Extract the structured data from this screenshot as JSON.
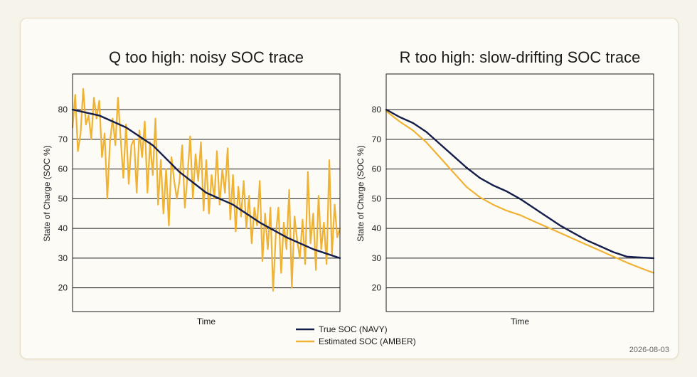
{
  "date": "2026-08-03",
  "colors": {
    "true": "#141e4a",
    "estimated": "#f0b233",
    "grid": "#1b1b1b"
  },
  "legend": [
    {
      "label": "True SOC (NAVY)",
      "color": "#141e4a"
    },
    {
      "label": "Estimated SOC (AMBER)",
      "color": "#f0b233"
    }
  ],
  "chart_data": [
    {
      "type": "line",
      "title": "Q too high: noisy SOC trace",
      "xlabel": "Time",
      "ylabel": "State of Charge (SOC %)",
      "ylim": [
        12,
        92
      ],
      "yticks": [
        20,
        30,
        40,
        50,
        60,
        70,
        80
      ],
      "xlim": [
        0,
        100
      ],
      "grid": "horizontal",
      "series": [
        {
          "name": "True SOC (NAVY)",
          "x": [
            0,
            10,
            20,
            30,
            40,
            50,
            60,
            70,
            80,
            90,
            100
          ],
          "values": [
            80,
            78,
            74,
            68,
            59,
            52,
            48,
            42,
            37,
            33,
            30
          ]
        },
        {
          "name": "Estimated SOC (AMBER)",
          "x": [
            0,
            1,
            2,
            3,
            4,
            5,
            6,
            7,
            8,
            9,
            10,
            11,
            12,
            13,
            14,
            15,
            16,
            17,
            18,
            19,
            20,
            21,
            22,
            23,
            24,
            25,
            26,
            27,
            28,
            29,
            30,
            31,
            32,
            33,
            34,
            35,
            36,
            37,
            38,
            39,
            40,
            41,
            42,
            43,
            44,
            45,
            46,
            47,
            48,
            49,
            50,
            51,
            52,
            53,
            54,
            55,
            56,
            57,
            58,
            59,
            60,
            61,
            62,
            63,
            64,
            65,
            66,
            67,
            68,
            69,
            70,
            71,
            72,
            73,
            74,
            75,
            76,
            77,
            78,
            79,
            80,
            81,
            82,
            83,
            84,
            85,
            86,
            87,
            88,
            89,
            90,
            91,
            92,
            93,
            94,
            95,
            96,
            97,
            98,
            99,
            100
          ],
          "values": [
            74,
            85,
            66,
            72,
            87,
            75,
            78,
            70,
            84,
            77,
            83,
            64,
            72,
            50,
            69,
            77,
            68,
            84,
            70,
            57,
            75,
            55,
            68,
            70,
            52,
            73,
            64,
            76,
            52,
            69,
            58,
            77,
            48,
            63,
            45,
            60,
            41,
            64,
            56,
            50,
            56,
            68,
            47,
            58,
            71,
            50,
            65,
            56,
            69,
            46,
            63,
            45,
            58,
            50,
            66,
            48,
            60,
            52,
            67,
            43,
            58,
            39,
            54,
            44,
            56,
            40,
            51,
            35,
            47,
            41,
            56,
            29,
            45,
            33,
            47,
            19,
            38,
            47,
            25,
            42,
            33,
            53,
            20,
            44,
            36,
            30,
            43,
            28,
            59,
            35,
            45,
            26,
            51,
            33,
            42,
            28,
            63,
            31,
            48,
            37,
            40
          ]
        }
      ]
    },
    {
      "type": "line",
      "title": "R too high: slow-drifting SOC trace",
      "xlabel": "Time",
      "ylabel": "State of Charge (SOC %)",
      "ylim": [
        12,
        92
      ],
      "yticks": [
        20,
        30,
        40,
        50,
        60,
        70,
        80
      ],
      "xlim": [
        0,
        100
      ],
      "grid": "horizontal",
      "series": [
        {
          "name": "True SOC (NAVY)",
          "x": [
            0,
            5,
            10,
            15,
            20,
            25,
            30,
            35,
            40,
            45,
            50,
            55,
            60,
            65,
            70,
            75,
            80,
            85,
            90,
            95,
            100
          ],
          "values": [
            80,
            77.5,
            75.5,
            72.5,
            68.5,
            64.5,
            60.5,
            57,
            54.5,
            52.5,
            50,
            47,
            44,
            41,
            38.5,
            36,
            34,
            32,
            30.5,
            30.2,
            30
          ]
        },
        {
          "name": "Estimated SOC (AMBER)",
          "x": [
            0,
            5,
            10,
            15,
            20,
            25,
            30,
            35,
            40,
            45,
            50,
            55,
            60,
            65,
            70,
            75,
            80,
            85,
            90,
            95,
            100
          ],
          "values": [
            79.5,
            76,
            73,
            69,
            64,
            59,
            54,
            50.5,
            48,
            46,
            44.5,
            42.5,
            40.5,
            38.5,
            36.5,
            34.5,
            32.5,
            30.5,
            28.5,
            26.7,
            25
          ]
        }
      ]
    }
  ]
}
